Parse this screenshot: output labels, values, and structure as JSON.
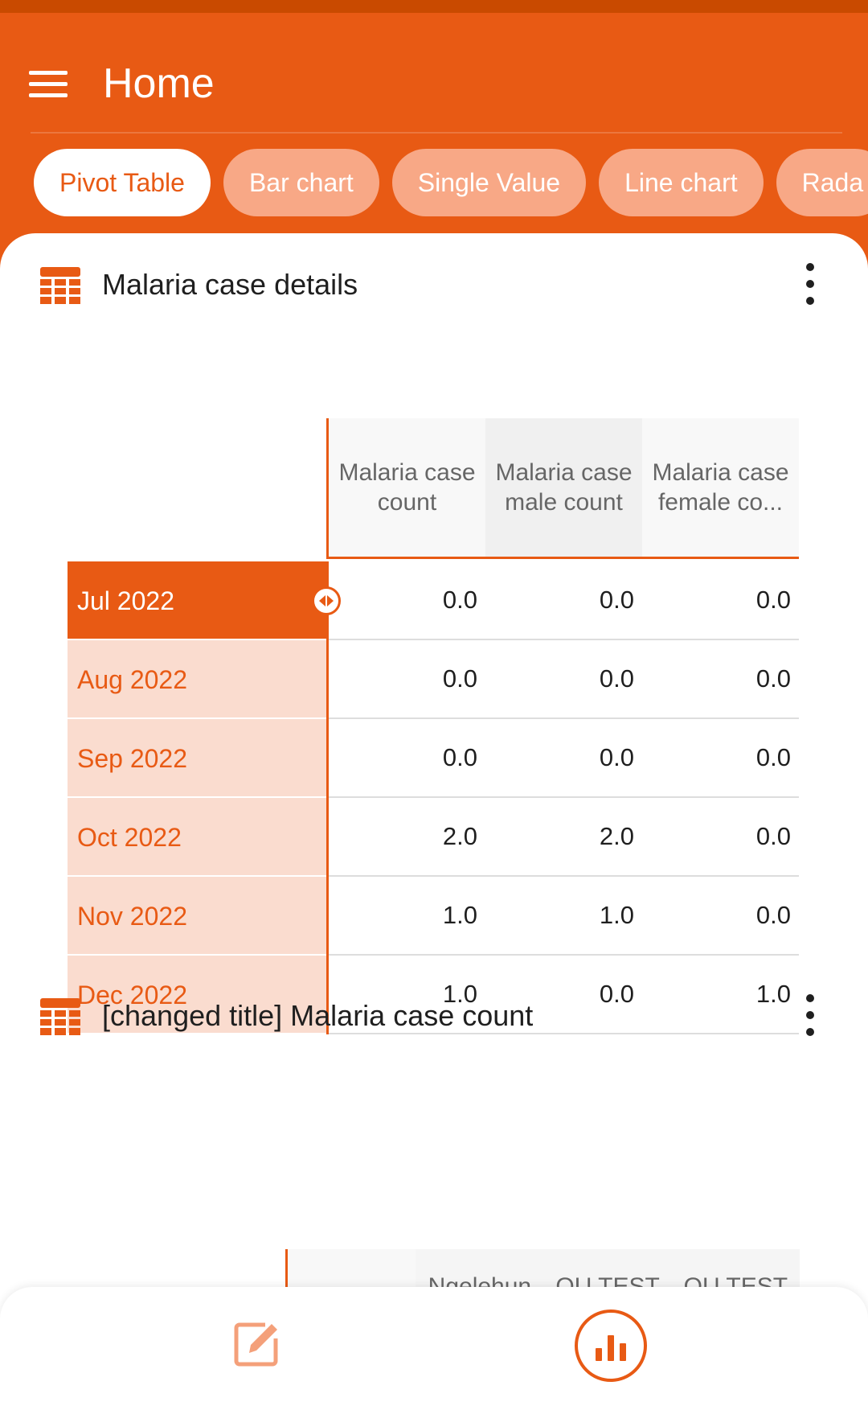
{
  "app": {
    "title": "Home"
  },
  "tabs": [
    {
      "label": "Pivot Table",
      "active": true
    },
    {
      "label": "Bar chart",
      "active": false
    },
    {
      "label": "Single Value",
      "active": false
    },
    {
      "label": "Line chart",
      "active": false
    },
    {
      "label": "Rada",
      "active": false
    }
  ],
  "card1": {
    "title": "Malaria case details",
    "columns": [
      "Malaria case count",
      "Malaria case male count",
      "Malaria case female co..."
    ],
    "rows": [
      {
        "label": "Jul 2022",
        "values": [
          "0.0",
          "0.0",
          "0.0"
        ]
      },
      {
        "label": "Aug 2022",
        "values": [
          "0.0",
          "0.0",
          "0.0"
        ]
      },
      {
        "label": "Sep 2022",
        "values": [
          "0.0",
          "0.0",
          "0.0"
        ]
      },
      {
        "label": "Oct 2022",
        "values": [
          "2.0",
          "2.0",
          "0.0"
        ]
      },
      {
        "label": "Nov 2022",
        "values": [
          "1.0",
          "1.0",
          "0.0"
        ]
      },
      {
        "label": "Dec 2022",
        "values": [
          "1.0",
          "0.0",
          "1.0"
        ]
      }
    ]
  },
  "card2": {
    "title": "[changed title] Malaria case count",
    "columns": [
      "Ngelehun",
      "OU TEST",
      "OU TEST"
    ]
  },
  "colors": {
    "primary": "#E85A14",
    "chip_inactive": "#F8A886",
    "row_header_bg": "#FADCCF"
  },
  "icons": [
    "menu-icon",
    "table-icon",
    "more-vert-icon",
    "column-resize-icon",
    "edit-icon",
    "bar-chart-icon"
  ]
}
